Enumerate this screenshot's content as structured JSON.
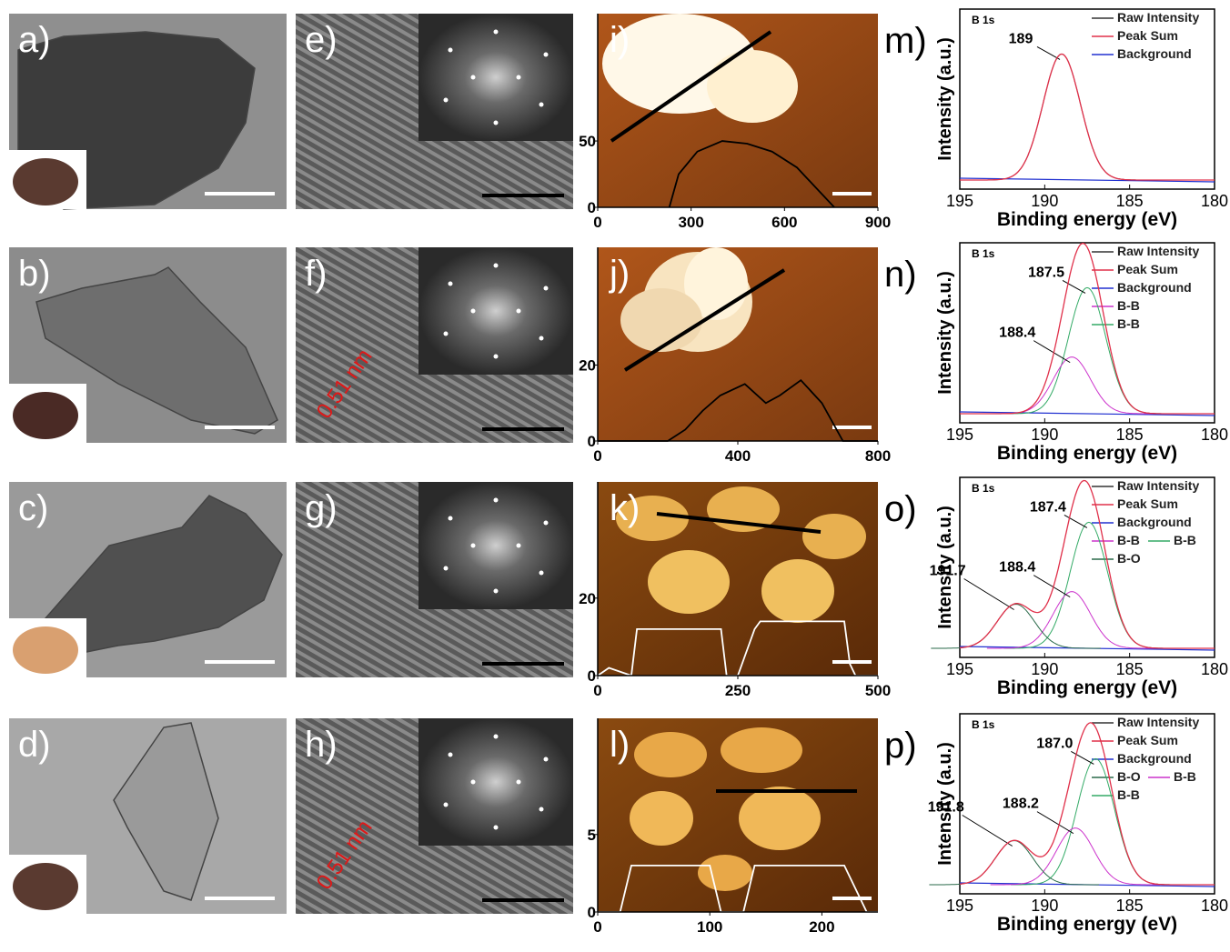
{
  "rows": [
    {
      "tem": {
        "label": "a)"
      },
      "hrtem": {
        "label": "e)"
      },
      "afm": {
        "label": "i)",
        "xlim": [
          0,
          900
        ],
        "xticks": [
          0,
          300,
          600,
          900
        ],
        "ylim": [
          0,
          146
        ],
        "yticks": [
          0,
          50
        ],
        "profile": {
          "x": [
            230,
            260,
            320,
            400,
            480,
            560,
            640,
            700,
            760
          ],
          "y": [
            0,
            25,
            42,
            50,
            48,
            42,
            30,
            15,
            0
          ]
        }
      },
      "xps": {
        "label": "m)",
        "title": "B 1s",
        "xlabel": "Binding energy (eV)",
        "ylabel": "Intensity (a.u.)",
        "xlim": [
          195,
          180
        ],
        "xticks": [
          195,
          190,
          185,
          180
        ],
        "legend": [
          [
            {
              "name": "Raw Intensity",
              "color": "#333333"
            }
          ],
          [
            {
              "name": "Peak Sum",
              "color": "#e0304a"
            }
          ],
          [
            {
              "name": "Background",
              "color": "#2030d0"
            }
          ]
        ],
        "peaks": [
          189
        ]
      }
    },
    {
      "tem": {
        "label": "b)"
      },
      "hrtem": {
        "label": "f)",
        "annotation": "0.51 nm"
      },
      "afm": {
        "label": "j)",
        "xlim": [
          0,
          800
        ],
        "xticks": [
          0,
          400,
          800
        ],
        "ylim": [
          0,
          51
        ],
        "yticks": [
          0,
          20
        ],
        "profile": {
          "x": [
            0,
            200,
            250,
            300,
            350,
            420,
            480,
            520,
            580,
            640,
            700,
            800
          ],
          "y": [
            0,
            0,
            3,
            8,
            12,
            15,
            10,
            12,
            16,
            10,
            0,
            0
          ]
        }
      },
      "xps": {
        "label": "n)",
        "title": "B 1s",
        "xlabel": "Binding energy (eV)",
        "ylabel": "Intensity (a.u.)",
        "xlim": [
          195,
          180
        ],
        "xticks": [
          195,
          190,
          185,
          180
        ],
        "legend": [
          [
            {
              "name": "Raw Intensity",
              "color": "#333333"
            }
          ],
          [
            {
              "name": "Peak Sum",
              "color": "#e0304a"
            }
          ],
          [
            {
              "name": "Background",
              "color": "#2030d0"
            }
          ],
          [
            {
              "name": "B-B",
              "color": "#cc33cc"
            }
          ],
          [
            {
              "name": "B-B",
              "color": "#33aa66"
            }
          ]
        ],
        "peaks": [
          187.5,
          188.4
        ]
      }
    },
    {
      "tem": {
        "label": "c)"
      },
      "hrtem": {
        "label": "g)"
      },
      "afm": {
        "label": "k)",
        "xlim": [
          0,
          500
        ],
        "xticks": [
          0,
          250,
          500
        ],
        "ylim": [
          0,
          50
        ],
        "yticks": [
          0,
          20
        ],
        "profile": {
          "x": [
            0,
            20,
            40,
            60,
            70,
            220,
            230,
            250,
            280,
            290,
            440,
            450,
            460,
            500
          ],
          "y": [
            0,
            2,
            1,
            0,
            12,
            12,
            0,
            0,
            12,
            14,
            14,
            3,
            0,
            0
          ]
        }
      },
      "xps": {
        "label": "o)",
        "title": "B 1s",
        "xlabel": "Binding energy (eV)",
        "ylabel": "Intensity (a.u.)",
        "xlim": [
          195,
          180
        ],
        "xticks": [
          195,
          190,
          185,
          180
        ],
        "legend": [
          [
            {
              "name": "Raw Intensity",
              "color": "#333333"
            }
          ],
          [
            {
              "name": "Peak Sum",
              "color": "#e0304a"
            }
          ],
          [
            {
              "name": "Background",
              "color": "#2030d0"
            }
          ],
          [
            {
              "name": "B-B",
              "color": "#cc33cc"
            },
            {
              "name": "B-B",
              "color": "#33aa66"
            }
          ],
          [
            {
              "name": "B-O",
              "color": "#2a6a4a"
            }
          ]
        ],
        "peaks": [
          187.4,
          188.4,
          191.7
        ]
      }
    },
    {
      "tem": {
        "label": "d)"
      },
      "hrtem": {
        "label": "h)",
        "annotation": "0.51 nm"
      },
      "afm": {
        "label": "l)",
        "xlim": [
          0,
          250
        ],
        "xticks": [
          0,
          100,
          200
        ],
        "ylim": [
          0,
          12.5
        ],
        "yticks": [
          0,
          5
        ],
        "profile": {
          "x": [
            0,
            20,
            30,
            40,
            100,
            110,
            130,
            140,
            200,
            220,
            240,
            250
          ],
          "y": [
            0,
            0,
            3,
            3,
            3,
            0,
            0,
            3,
            3,
            3,
            0,
            0
          ]
        }
      },
      "xps": {
        "label": "p)",
        "title": "B 1s",
        "xlabel": "Binding energy (eV)",
        "ylabel": "Intensity (a.u.)",
        "xlim": [
          195,
          180
        ],
        "xticks": [
          195,
          190,
          185,
          180
        ],
        "legend": [
          [
            {
              "name": "Raw Intensity",
              "color": "#333333"
            }
          ],
          [
            {
              "name": "Peak Sum",
              "color": "#e0304a"
            }
          ],
          [
            {
              "name": "Background",
              "color": "#2030d0"
            }
          ],
          [
            {
              "name": "B-O",
              "color": "#2a6a4a"
            },
            {
              "name": "B-B",
              "color": "#cc33cc"
            }
          ],
          [
            {
              "name": "B-B",
              "color": "#33aa66"
            }
          ]
        ],
        "peaks": [
          {
            "value": 187,
            "label": "187.0"
          },
          188.2,
          191.8
        ]
      }
    }
  ]
}
